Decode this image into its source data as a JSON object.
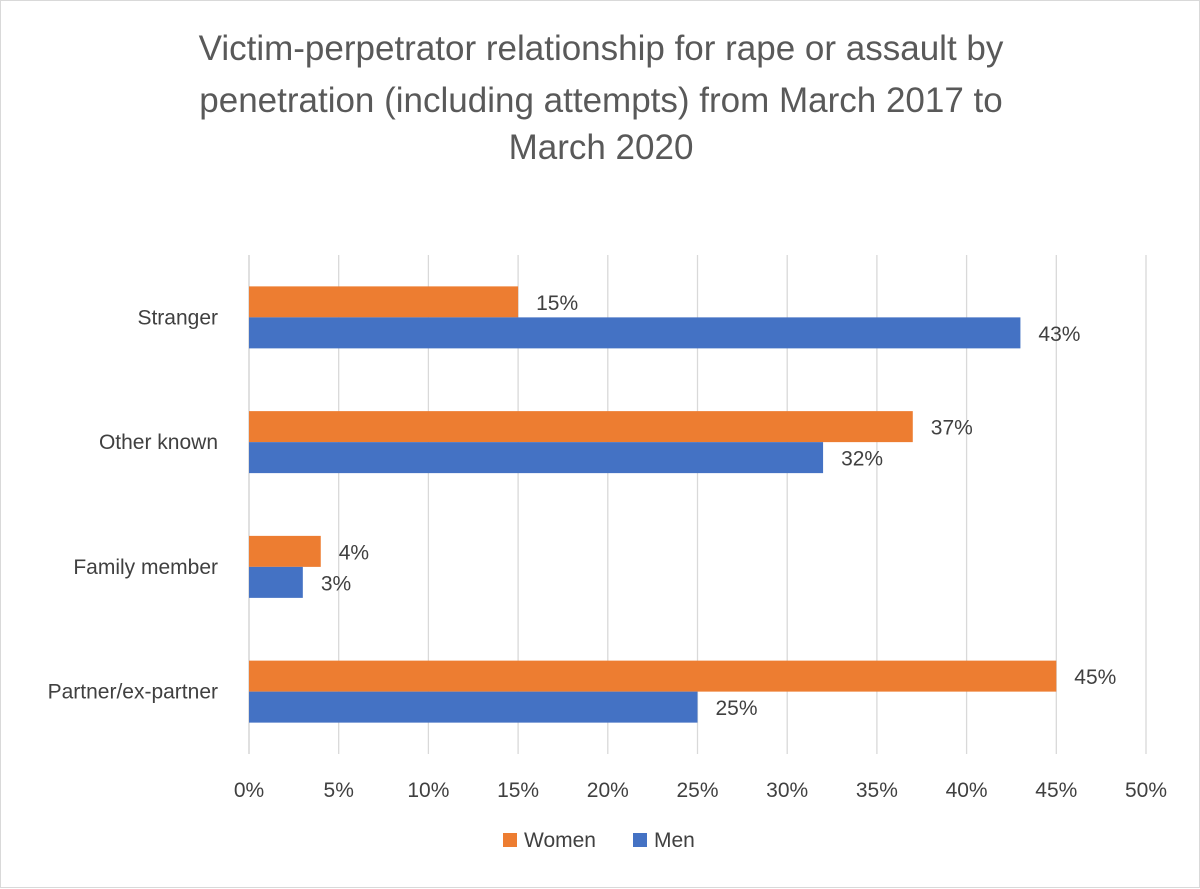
{
  "chart_data": {
    "type": "bar",
    "orientation": "horizontal",
    "title_lines": [
      "Victim-perpetrator relationship for rape or assault by",
      "penetration (including attempts)  from March 2017 to",
      "March 2020"
    ],
    "xlabel": "",
    "ylabel": "",
    "categories": [
      "Stranger",
      "Other known",
      "Family member",
      "Partner/ex-partner"
    ],
    "series": [
      {
        "name": "Women",
        "color": "#ed7d31",
        "values": [
          15,
          37,
          4,
          45
        ],
        "labels": [
          "15%",
          "37%",
          "4%",
          "45%"
        ]
      },
      {
        "name": "Men",
        "color": "#4472c4",
        "values": [
          43,
          32,
          3,
          25
        ],
        "labels": [
          "43%",
          "32%",
          "3%",
          "25%"
        ]
      }
    ],
    "xlim": [
      0,
      50
    ],
    "xticks": [
      0,
      5,
      10,
      15,
      20,
      25,
      30,
      35,
      40,
      45,
      50
    ],
    "xtick_labels": [
      "0%",
      "5%",
      "10%",
      "15%",
      "20%",
      "25%",
      "30%",
      "35%",
      "40%",
      "45%",
      "50%"
    ],
    "grid": "vertical",
    "legend_position": "bottom"
  }
}
